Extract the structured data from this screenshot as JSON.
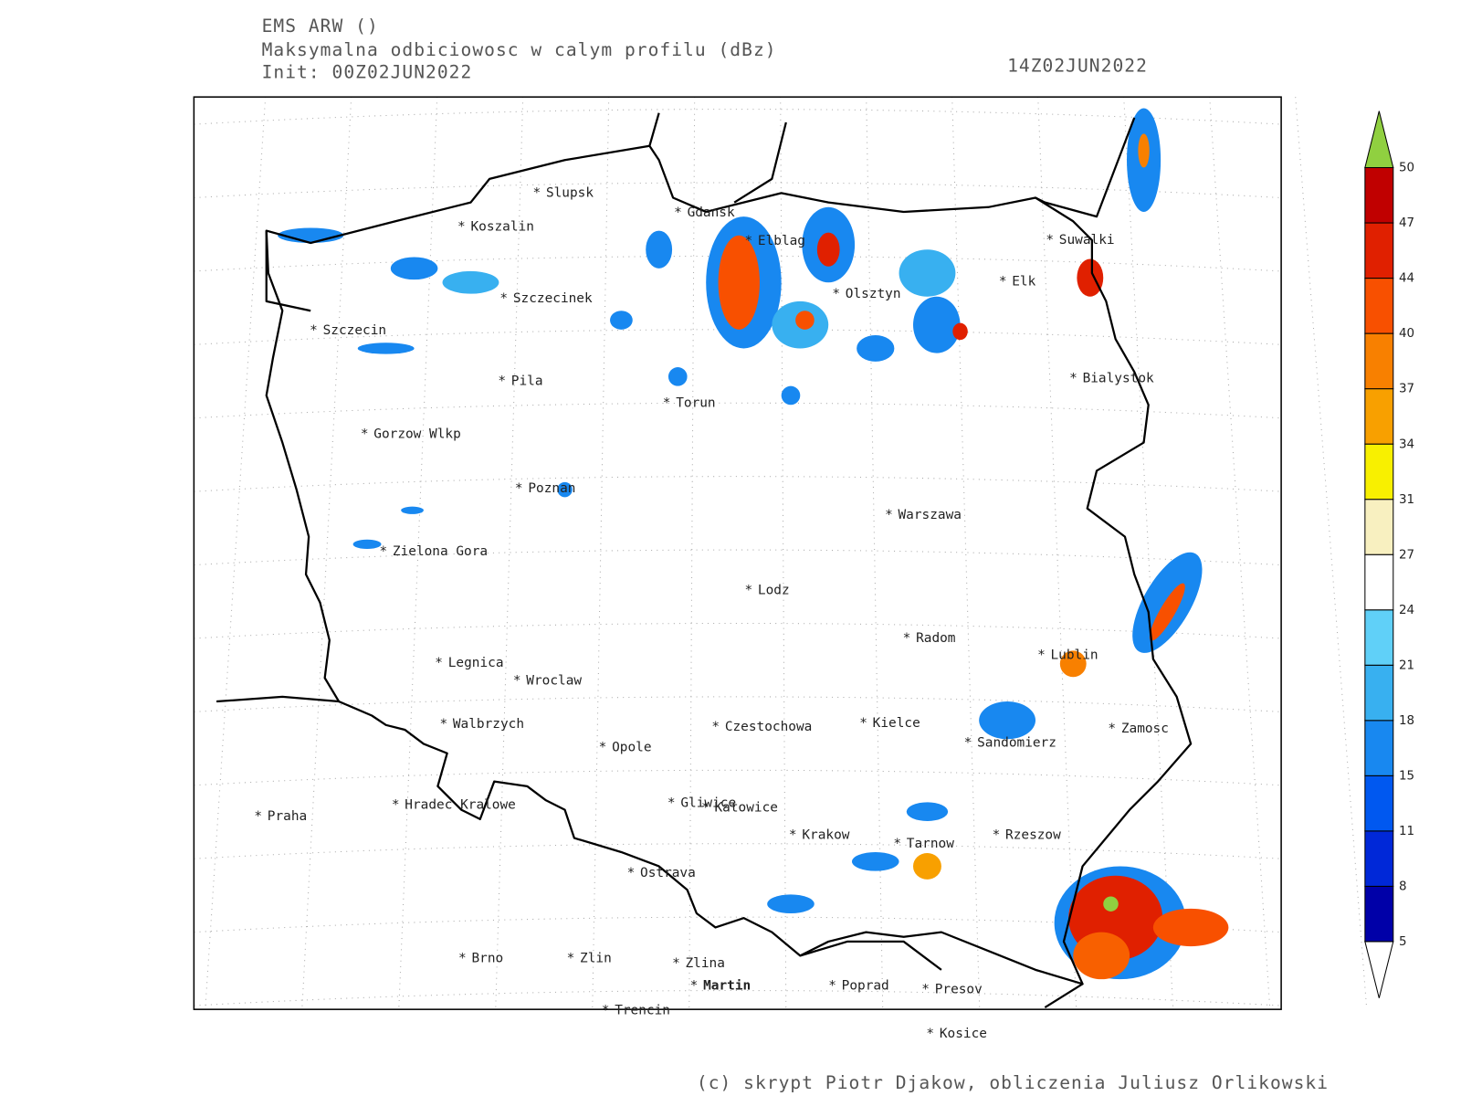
{
  "header": {
    "model": "EMS ARW ()",
    "field": "Maksymalna odbiciowosc w calym profilu (dBz)",
    "init": "Init: 00Z02JUN2022",
    "valid": "14Z02JUN2022"
  },
  "cities": [
    "Slupsk",
    "Koszalin",
    "Gdansk",
    "Elblag",
    "Suwalki",
    "Elk",
    "Olsztyn",
    "Szczecinek",
    "Szczecin",
    "Pila",
    "Torun",
    "Bialystok",
    "Gorzow Wlkp",
    "Poznan",
    "Warszawa",
    "Zielona Gora",
    "Lodz",
    "Radom",
    "Lublin",
    "Legnica",
    "Wroclaw",
    "Walbrzych",
    "Czestochowa",
    "Kielce",
    "Zamosc",
    "Sandomierz",
    "Opole",
    "Praha",
    "Hradec Kralowe",
    "Gliwice",
    "Katowice",
    "Krakow",
    "Tarnow",
    "Rzeszow",
    "Ostrava",
    "Brno",
    "Zlin",
    "Zlina",
    "Martin",
    "Poprad",
    "Presov",
    "Trencin",
    "Kosice"
  ],
  "colorbar": {
    "levels": [
      5,
      8,
      11,
      15,
      18,
      21,
      24,
      27,
      31,
      34,
      37,
      40,
      44,
      47,
      50
    ],
    "colors": [
      "#0000a8",
      "#0028d8",
      "#0058f0",
      "#1888f0",
      "#38b0f0",
      "#60d0f8",
      "#ffffff",
      "#f8f0c0",
      "#f8f000",
      "#f8a000",
      "#f88000",
      "#f85000",
      "#e02000",
      "#c00000"
    ],
    "over_color": "#90d040",
    "under_color": "#ffffff"
  },
  "credit": "(c) skrypt Piotr Djakow, obliczenia Juliusz Orlikowski"
}
